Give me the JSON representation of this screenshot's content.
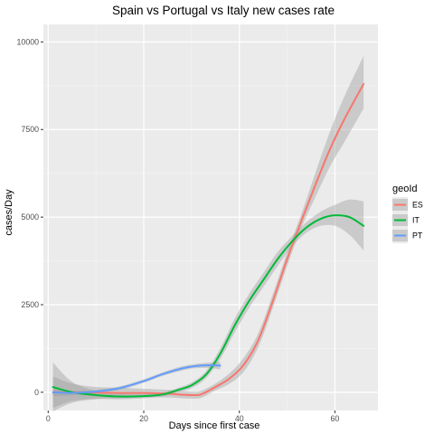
{
  "chart_data": {
    "type": "line",
    "title": "Spain vs Portugal vs Italy new cases rate",
    "xlabel": "Days since first case",
    "ylabel": "cases/Day",
    "xlim": [
      -1,
      69
    ],
    "ylim": [
      -520,
      10500
    ],
    "x_ticks": [
      0,
      20,
      40,
      60
    ],
    "x_tick_labels": [
      "0",
      "20",
      "40",
      "60"
    ],
    "y_ticks": [
      0,
      2500,
      5000,
      7500,
      10000
    ],
    "y_tick_labels": [
      "0",
      "2500",
      "5000",
      "7500",
      "10000"
    ],
    "grid": true,
    "legend": {
      "title": "geoId",
      "placement": "right"
    },
    "series": [
      {
        "name": "ES",
        "color": "#F8766D",
        "x": [
          1,
          5,
          10,
          15,
          20,
          25,
          28,
          30,
          32,
          35,
          38,
          41,
          44,
          47,
          50,
          53,
          56,
          59,
          62,
          66
        ],
        "y": [
          0,
          0,
          -10,
          -20,
          -20,
          -40,
          -70,
          -80,
          -60,
          150,
          400,
          800,
          1500,
          2600,
          3800,
          4900,
          5950,
          6950,
          7800,
          8800
        ],
        "ci_lower": [
          -450,
          -250,
          -180,
          -170,
          -140,
          -150,
          -170,
          -180,
          -160,
          50,
          250,
          600,
          1300,
          2400,
          3600,
          4700,
          5600,
          6450,
          7150,
          8100
        ],
        "ci_upper": [
          450,
          250,
          150,
          130,
          100,
          70,
          40,
          20,
          40,
          250,
          550,
          1000,
          1700,
          2800,
          4000,
          5100,
          6300,
          7450,
          8450,
          9600
        ]
      },
      {
        "name": "IT",
        "color": "#00BA38",
        "x": [
          1,
          5,
          10,
          15,
          20,
          24,
          27,
          30,
          33,
          36,
          39,
          42,
          45,
          48,
          51,
          54,
          57,
          60,
          63,
          66
        ],
        "y": [
          150,
          0,
          -80,
          -120,
          -110,
          -60,
          60,
          200,
          500,
          1100,
          1900,
          2600,
          3200,
          3800,
          4300,
          4700,
          4950,
          5050,
          5000,
          4750
        ],
        "ci_lower": [
          -550,
          -300,
          -200,
          -200,
          -170,
          -120,
          0,
          120,
          400,
          950,
          1700,
          2400,
          3000,
          3600,
          4150,
          4550,
          4750,
          4750,
          4500,
          4050
        ],
        "ci_upper": [
          850,
          300,
          40,
          -40,
          -50,
          0,
          120,
          280,
          600,
          1250,
          2100,
          2800,
          3400,
          4000,
          4450,
          4850,
          5150,
          5350,
          5500,
          5450
        ]
      },
      {
        "name": "PT",
        "color": "#619CFF",
        "x": [
          1,
          5,
          10,
          15,
          20,
          24,
          28,
          31,
          34,
          36
        ],
        "y": [
          0,
          -20,
          20,
          120,
          320,
          520,
          680,
          750,
          770,
          760
        ],
        "ci_lower": [
          -110,
          -80,
          -30,
          70,
          270,
          470,
          620,
          690,
          690,
          650
        ],
        "ci_upper": [
          110,
          40,
          70,
          170,
          370,
          570,
          740,
          810,
          850,
          870
        ]
      }
    ]
  }
}
